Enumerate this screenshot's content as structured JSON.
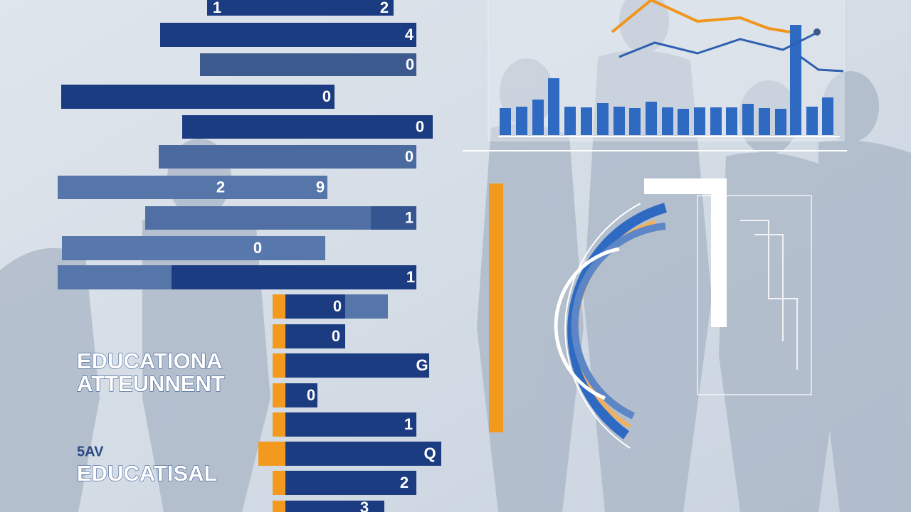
{
  "bar_labels": [
    [
      "1",
      "2"
    ],
    [
      "4"
    ],
    [
      "0"
    ],
    [
      "0"
    ],
    [
      "0"
    ],
    [
      "0"
    ],
    [
      "2",
      "9"
    ],
    [
      "1"
    ],
    [
      "0"
    ],
    [
      "1"
    ],
    [
      "0"
    ],
    [
      "0"
    ],
    [
      "G"
    ],
    [
      "0"
    ],
    [
      "1"
    ],
    [
      "Q"
    ],
    [
      "2"
    ],
    [
      "3"
    ]
  ],
  "titles": {
    "line1": "EDUCATIONA",
    "line2": "ATTEUNNENT",
    "line3": "EDUCATISAL",
    "badge": "5AV"
  }
}
